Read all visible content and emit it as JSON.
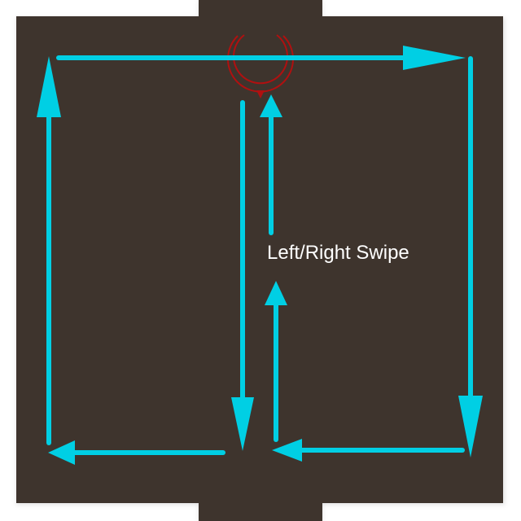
{
  "diagram": {
    "label": "Left/Right Swipe",
    "colors": {
      "background": "#3e342d",
      "arrow": "#00cfe4",
      "rotation_indicator": "#b01010",
      "label_text": "#ffffff",
      "shadow": "#c8c8c8"
    },
    "icons": [
      "swipe-arrow",
      "rotate-icon"
    ]
  }
}
